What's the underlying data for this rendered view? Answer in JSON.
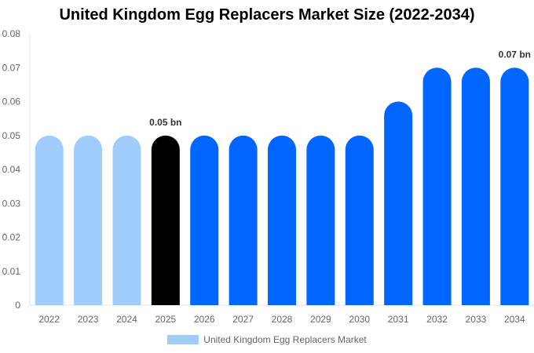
{
  "chart_data": {
    "type": "bar",
    "title": "United Kingdom Egg Replacers Market Size (2022-2034)",
    "categories": [
      "2022",
      "2023",
      "2024",
      "2025",
      "2026",
      "2027",
      "2028",
      "2029",
      "2030",
      "2031",
      "2032",
      "2033",
      "2034"
    ],
    "series": [
      {
        "name": "United Kingdom Egg Replacers Market",
        "values": [
          0.05,
          0.05,
          0.05,
          0.05,
          0.05,
          0.05,
          0.05,
          0.05,
          0.05,
          0.06,
          0.07,
          0.07,
          0.07
        ]
      }
    ],
    "bar_colors": [
      "#a0cdfc",
      "#a0cdfc",
      "#a0cdfc",
      "#000000",
      "#0066ff",
      "#0066ff",
      "#0066ff",
      "#0066ff",
      "#0066ff",
      "#0066ff",
      "#0066ff",
      "#0066ff",
      "#0066ff"
    ],
    "data_labels": {
      "2025": "0.05 bn",
      "2034": "0.07 bn"
    },
    "yticks": [
      "0",
      "0.01",
      "0.02",
      "0.03",
      "0.04",
      "0.05",
      "0.06",
      "0.07",
      "0.08"
    ],
    "ylim": [
      0,
      0.08
    ],
    "xlabel": "",
    "ylabel": "",
    "grid": false,
    "legend": "bottom",
    "legend_color": "#a0cdfc"
  }
}
